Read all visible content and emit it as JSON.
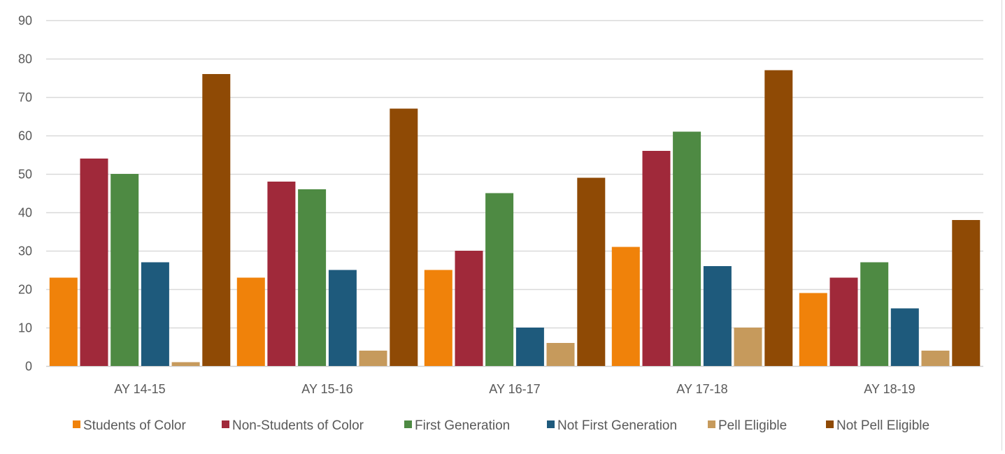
{
  "chart_data": {
    "type": "bar",
    "categories": [
      "AY 14-15",
      "AY 15-16",
      "AY 16-17",
      "AY 17-18",
      "AY 18-19"
    ],
    "series": [
      {
        "name": "Students of Color",
        "color": "#F0820A",
        "values": [
          23,
          23,
          25,
          31,
          19
        ]
      },
      {
        "name": "Non-Students of Color",
        "color": "#A0293A",
        "values": [
          54,
          48,
          30,
          56,
          23
        ]
      },
      {
        "name": "First Generation",
        "color": "#4E8A43",
        "values": [
          50,
          46,
          45,
          61,
          27
        ]
      },
      {
        "name": "Not First Generation",
        "color": "#1E5A7C",
        "values": [
          27,
          25,
          10,
          26,
          15
        ]
      },
      {
        "name": "Pell Eligible",
        "color": "#C69A5C",
        "values": [
          1,
          4,
          6,
          10,
          4
        ]
      },
      {
        "name": "Not Pell Eligible",
        "color": "#8F4A05",
        "values": [
          76,
          67,
          49,
          77,
          38
        ]
      }
    ],
    "y_ticks": [
      "0",
      "10",
      "20",
      "30",
      "40",
      "50",
      "60",
      "70",
      "80",
      "90"
    ],
    "ylim": [
      0,
      90
    ],
    "grid": true,
    "legend_position": "bottom",
    "title": "",
    "xlabel": "",
    "ylabel": ""
  }
}
